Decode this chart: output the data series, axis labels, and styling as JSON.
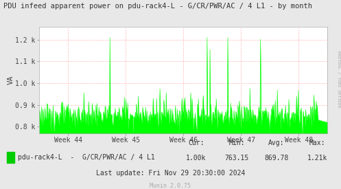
{
  "title": "PDU infeed apparent power on pdu-rack4-L - G/CR/PWR/AC / 4 L1 - by month",
  "ylabel": "VA",
  "ylim_min": 770,
  "ylim_max": 1260,
  "yticks": [
    800,
    900,
    1000,
    1100,
    1200
  ],
  "ytick_labels": [
    "0.8 k",
    "0.9 k",
    "1.0 k",
    "1.1 k",
    "1.2 k"
  ],
  "week_labels": [
    "Week 44",
    "Week 45",
    "Week 46",
    "Week 47",
    "Week 48"
  ],
  "legend_label": "pdu-rack4-L  -  G/CR/PWR/AC / 4 L1",
  "cur": "1.00k",
  "min": "763.15",
  "avg": "869.78",
  "max": "1.21k",
  "last_update": "Last update: Fri Nov 29 20:30:00 2024",
  "munin_version": "Munin 2.0.75",
  "line_color": "#00ff00",
  "fill_color": "#00ff00",
  "bg_color": "#e8e8e8",
  "plot_bg_color": "#ffffff",
  "grid_color": "#ff8888",
  "title_color": "#333333",
  "legend_color": "#00cc00",
  "rrdtool_text": "RRDTOOL / TOBI OETIKER",
  "n_points": 600
}
